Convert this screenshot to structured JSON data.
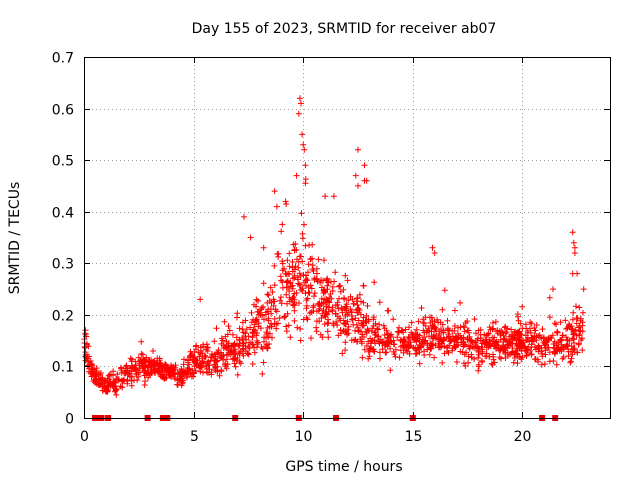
{
  "chart_data": {
    "type": "scatter",
    "title": "Day 155 of 2023, SRMTID for receiver ab07",
    "xlabel": "GPS time / hours",
    "ylabel": "SRMTID / TECUs",
    "xlim": [
      0,
      24
    ],
    "ylim": [
      0,
      0.7
    ],
    "x_ticks": [
      0,
      5,
      10,
      15,
      20
    ],
    "x_tick_labels": [
      "0",
      "5",
      "10",
      "15",
      "20"
    ],
    "y_ticks": [
      0,
      0.1,
      0.2,
      0.3,
      0.4,
      0.5,
      0.6,
      0.7
    ],
    "y_tick_labels": [
      "0",
      "0.1",
      "0.2",
      "0.3",
      "0.4",
      "0.5",
      "0.6",
      "0.7"
    ],
    "grid": true,
    "marker": "plus",
    "series_color": "#ff0000",
    "baseline_marker_color": "#e00000",
    "profile": {
      "description_hours": "approximate median and spread of SRMTID vs GPS hour",
      "hours": [
        0.0,
        0.5,
        1.0,
        2.0,
        3.0,
        4.0,
        4.5,
        5.0,
        6.0,
        7.0,
        8.0,
        8.5,
        9.0,
        9.5,
        10.0,
        10.5,
        11.0,
        12.0,
        12.5,
        13.0,
        14.0,
        15.0,
        16.0,
        17.0,
        18.0,
        19.0,
        20.0,
        21.0,
        22.0,
        22.8
      ],
      "median": [
        0.14,
        0.08,
        0.06,
        0.09,
        0.1,
        0.09,
        0.08,
        0.11,
        0.12,
        0.13,
        0.17,
        0.2,
        0.24,
        0.26,
        0.27,
        0.25,
        0.22,
        0.2,
        0.19,
        0.16,
        0.15,
        0.15,
        0.16,
        0.15,
        0.14,
        0.14,
        0.15,
        0.14,
        0.14,
        0.17
      ],
      "spread": [
        0.04,
        0.03,
        0.03,
        0.04,
        0.03,
        0.02,
        0.02,
        0.04,
        0.05,
        0.05,
        0.08,
        0.1,
        0.11,
        0.12,
        0.12,
        0.1,
        0.09,
        0.08,
        0.08,
        0.06,
        0.05,
        0.05,
        0.05,
        0.05,
        0.05,
        0.05,
        0.05,
        0.05,
        0.06,
        0.06
      ]
    },
    "notable_points": [
      {
        "x": 9.85,
        "y": 0.62
      },
      {
        "x": 9.9,
        "y": 0.61
      },
      {
        "x": 9.8,
        "y": 0.59
      },
      {
        "x": 9.95,
        "y": 0.55
      },
      {
        "x": 10.0,
        "y": 0.53
      },
      {
        "x": 10.05,
        "y": 0.52
      },
      {
        "x": 10.1,
        "y": 0.49
      },
      {
        "x": 10.1,
        "y": 0.455
      },
      {
        "x": 9.7,
        "y": 0.47
      },
      {
        "x": 12.5,
        "y": 0.52
      },
      {
        "x": 12.8,
        "y": 0.49
      },
      {
        "x": 12.8,
        "y": 0.46
      },
      {
        "x": 12.9,
        "y": 0.46
      },
      {
        "x": 12.4,
        "y": 0.47
      },
      {
        "x": 12.5,
        "y": 0.45
      },
      {
        "x": 11.4,
        "y": 0.43
      },
      {
        "x": 11.0,
        "y": 0.43
      },
      {
        "x": 8.7,
        "y": 0.44
      },
      {
        "x": 9.2,
        "y": 0.42
      },
      {
        "x": 8.8,
        "y": 0.41
      },
      {
        "x": 15.9,
        "y": 0.33
      },
      {
        "x": 16.0,
        "y": 0.32
      },
      {
        "x": 22.3,
        "y": 0.36
      },
      {
        "x": 22.35,
        "y": 0.34
      },
      {
        "x": 22.4,
        "y": 0.33
      },
      {
        "x": 22.4,
        "y": 0.32
      },
      {
        "x": 22.3,
        "y": 0.28
      },
      {
        "x": 22.5,
        "y": 0.28
      },
      {
        "x": 5.3,
        "y": 0.23
      },
      {
        "x": 21.4,
        "y": 0.25
      },
      {
        "x": 22.8,
        "y": 0.25
      },
      {
        "x": 7.3,
        "y": 0.39
      },
      {
        "x": 7.6,
        "y": 0.35
      },
      {
        "x": 8.2,
        "y": 0.33
      }
    ],
    "baseline_markers_x": [
      0.5,
      0.65,
      0.8,
      1.1,
      2.9,
      3.6,
      3.8,
      6.9,
      9.8,
      11.5,
      15.0,
      20.9,
      21.5
    ]
  }
}
